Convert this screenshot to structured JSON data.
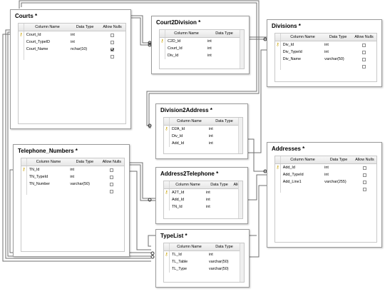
{
  "tables": {
    "courts": {
      "title": "Courts *",
      "headers": {
        "column_name": "Column Name",
        "data_type": "Data Type",
        "allow_nulls": "Allow Nulls"
      },
      "rows": [
        {
          "name": "Court_Id",
          "type": "int",
          "key": true,
          "nulls": false
        },
        {
          "name": "Court_TypeID",
          "type": "int",
          "key": false,
          "nulls": false
        },
        {
          "name": "Court_Name",
          "type": "nchar(10)",
          "key": false,
          "nulls": true
        },
        {
          "name": "",
          "type": "",
          "key": false,
          "nulls": false
        }
      ]
    },
    "court2division": {
      "title": "Court2Division *",
      "headers": {
        "column_name": "Column Name",
        "data_type": "Data Type"
      },
      "rows": [
        {
          "name": "C2D_Id",
          "type": "int",
          "key": true
        },
        {
          "name": "Court_Id",
          "type": "int",
          "key": false
        },
        {
          "name": "Div_Id",
          "type": "int",
          "key": false
        }
      ]
    },
    "divisions": {
      "title": "Divisions *",
      "headers": {
        "column_name": "Column Name",
        "data_type": "Data Type",
        "allow_nulls": "Allow Nulls"
      },
      "rows": [
        {
          "name": "Div_Id",
          "type": "int",
          "key": true,
          "nulls": false
        },
        {
          "name": "Div_TypeId",
          "type": "int",
          "key": false,
          "nulls": false
        },
        {
          "name": "Div_Name",
          "type": "varchar(50)",
          "key": false,
          "nulls": false
        },
        {
          "name": "",
          "type": "",
          "key": false,
          "nulls": false
        }
      ]
    },
    "division2address": {
      "title": "Division2Address *",
      "headers": {
        "column_name": "Column Name",
        "data_type": "Data Type"
      },
      "rows": [
        {
          "name": "D2A_Id",
          "type": "int",
          "key": true
        },
        {
          "name": "Div_Id",
          "type": "int",
          "key": false
        },
        {
          "name": "Add_Id",
          "type": "int",
          "key": false
        }
      ]
    },
    "telephone_numbers": {
      "title": "Telephone_Numbers *",
      "headers": {
        "column_name": "Column Name",
        "data_type": "Data Type",
        "allow_nulls": "Allow Nulls"
      },
      "rows": [
        {
          "name": "TN_Id",
          "type": "int",
          "key": true,
          "nulls": false
        },
        {
          "name": "TN_TypeId",
          "type": "int",
          "key": false,
          "nulls": false
        },
        {
          "name": "TN_Number",
          "type": "varchar(50)",
          "key": false,
          "nulls": false
        },
        {
          "name": "",
          "type": "",
          "key": false,
          "nulls": false
        }
      ]
    },
    "addresses": {
      "title": "Addresses *",
      "headers": {
        "column_name": "Column Name",
        "data_type": "Data Type",
        "allow_nulls": "Allow Nulls"
      },
      "rows": [
        {
          "name": "Add_Id",
          "type": "int",
          "key": true,
          "nulls": false
        },
        {
          "name": "Add_TypeId",
          "type": "int",
          "key": false,
          "nulls": false
        },
        {
          "name": "Add_Line1",
          "type": "varchar(255)",
          "key": false,
          "nulls": false
        },
        {
          "name": "",
          "type": "",
          "key": false,
          "nulls": false
        }
      ]
    },
    "address2telephone": {
      "title": "Address2Telephone *",
      "headers": {
        "column_name": "Column Name",
        "data_type": "Data Type",
        "allow_nulls": "Allo"
      },
      "rows": [
        {
          "name": "A2T_Id",
          "type": "int",
          "key": true
        },
        {
          "name": "Add_Id",
          "type": "int",
          "key": false
        },
        {
          "name": "TN_Id",
          "type": "int",
          "key": false
        }
      ]
    },
    "typelist": {
      "title": "TypeList *",
      "headers": {
        "column_name": "Column Name",
        "data_type": "Data Type"
      },
      "rows": [
        {
          "name": "TL_Id",
          "type": "int",
          "key": true
        },
        {
          "name": "TL_Table",
          "type": "varchar(50)",
          "key": false
        },
        {
          "name": "TL_Type",
          "type": "varchar(50)",
          "key": false
        }
      ]
    }
  }
}
